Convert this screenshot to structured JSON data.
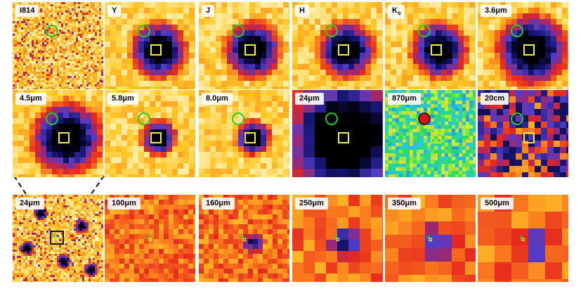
{
  "panels": [
    {
      "label": "I814",
      "palette": "noise_yellow",
      "blob": "none",
      "size": "small"
    },
    {
      "label": "Y",
      "palette": "heat",
      "blob": "medium",
      "size": "medium"
    },
    {
      "label": "J",
      "palette": "heat",
      "blob": "medium",
      "size": "medium"
    },
    {
      "label": "H",
      "palette": "heat",
      "blob": "medium",
      "size": "medium"
    },
    {
      "label": "K",
      "label_sub": "s",
      "palette": "heat",
      "blob": "medium",
      "size": "medium"
    },
    {
      "label": "3.6μm",
      "palette": "heat",
      "blob": "large",
      "size": "medium"
    },
    {
      "label": "4.5μm",
      "palette": "heat",
      "blob": "large",
      "size": "medium"
    },
    {
      "label": "5.8μm",
      "palette": "heat",
      "blob": "small",
      "size": "medium"
    },
    {
      "label": "8.0μm",
      "palette": "heat",
      "blob": "small",
      "size": "medium"
    },
    {
      "label": "24μm",
      "palette": "heat_dark",
      "blob": "huge",
      "size": "medium"
    },
    {
      "label": "870μm",
      "palette": "rainbow",
      "blob": "none",
      "size": "medium"
    },
    {
      "label": "20cm",
      "palette": "radio",
      "blob": "none",
      "size": "medium"
    },
    {
      "label": "24μm",
      "palette": "noise_yellow",
      "blob": "scatter",
      "size": "zoom"
    },
    {
      "label": "100μm",
      "palette": "fir",
      "blob": "none",
      "size": "marker"
    },
    {
      "label": "160μm",
      "palette": "fir",
      "blob": "tiny",
      "size": "marker"
    },
    {
      "label": "250μm",
      "palette": "fir_coarse",
      "blob": "small",
      "size": "marker"
    },
    {
      "label": "350μm",
      "palette": "fir_coarse2",
      "blob": "small",
      "size": "marker"
    },
    {
      "label": "500μm",
      "palette": "fir_coarse3",
      "blob": "small",
      "size": "marker"
    }
  ],
  "colors": {
    "circle_green": "#22cc22",
    "square_yellow": "#f4ec3a",
    "connector": "#111111",
    "red_source": "#dd1111"
  }
}
